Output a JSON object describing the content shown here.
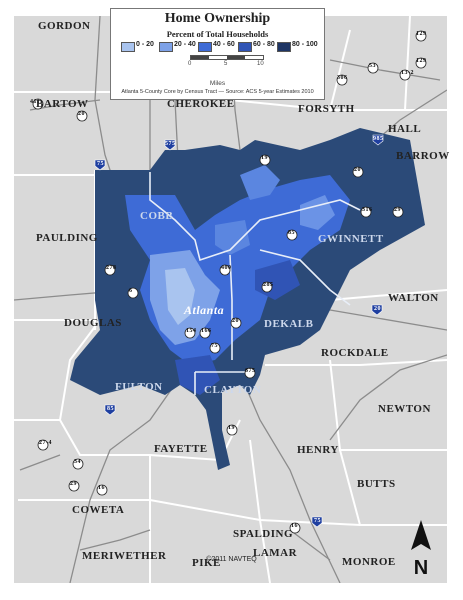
{
  "title": "Home Ownership",
  "subtitle": "Percent of Total Households",
  "legend": [
    {
      "label": "0 - 20",
      "color": "#a9c4ef"
    },
    {
      "label": "20 - 40",
      "color": "#7ea2e8"
    },
    {
      "label": "40 - 60",
      "color": "#3e6bd6"
    },
    {
      "label": "60 - 80",
      "color": "#3054b5"
    },
    {
      "label": "80 - 100",
      "color": "#1e3564"
    }
  ],
  "scale": {
    "ticks": [
      "0",
      "5",
      "10"
    ],
    "unit": "Miles"
  },
  "source": "Atlanta 5-County Core by Census Tract — Source: ACS 5-year Estimates 2010",
  "city": "Atlanta",
  "counties": {
    "gordon": "GORDON",
    "bartow": "BARTOW",
    "cherokee": "CHEROKEE",
    "forsyth": "FORSYTH",
    "hall": "HALL",
    "barrow": "BARROW",
    "cobb": "COBB",
    "gwinnett": "GWINNETT",
    "paulding": "PAULDING",
    "walton": "WALTON",
    "douglas": "DOUGLAS",
    "dekalb": "DEKALB",
    "rockdale": "ROCKDALE",
    "fulton": "FULTON",
    "clayton": "CLAYTON",
    "newton": "NEWTON",
    "fayette": "FAYETTE",
    "henry": "HENRY",
    "butts": "BUTTS",
    "coweta": "COWETA",
    "spalding": "SPALDING",
    "meriwether": "MERIWETHER",
    "pike": "PIKE",
    "lamar": "LAMAR",
    "monroe": "MONROE"
  },
  "routes": [
    "411",
    "20",
    "75",
    "575",
    "19",
    "985",
    "20",
    "29",
    "6",
    "20",
    "75",
    "85",
    "34",
    "29",
    "16",
    "16",
    "75",
    "19",
    "53",
    "306",
    "129",
    "129",
    "13-2",
    "27-4",
    "675",
    "154",
    "166",
    "400",
    "278",
    "85",
    "316",
    "20",
    "285"
  ],
  "north_label": "N",
  "copyright": "©2011 NAVTEQ"
}
